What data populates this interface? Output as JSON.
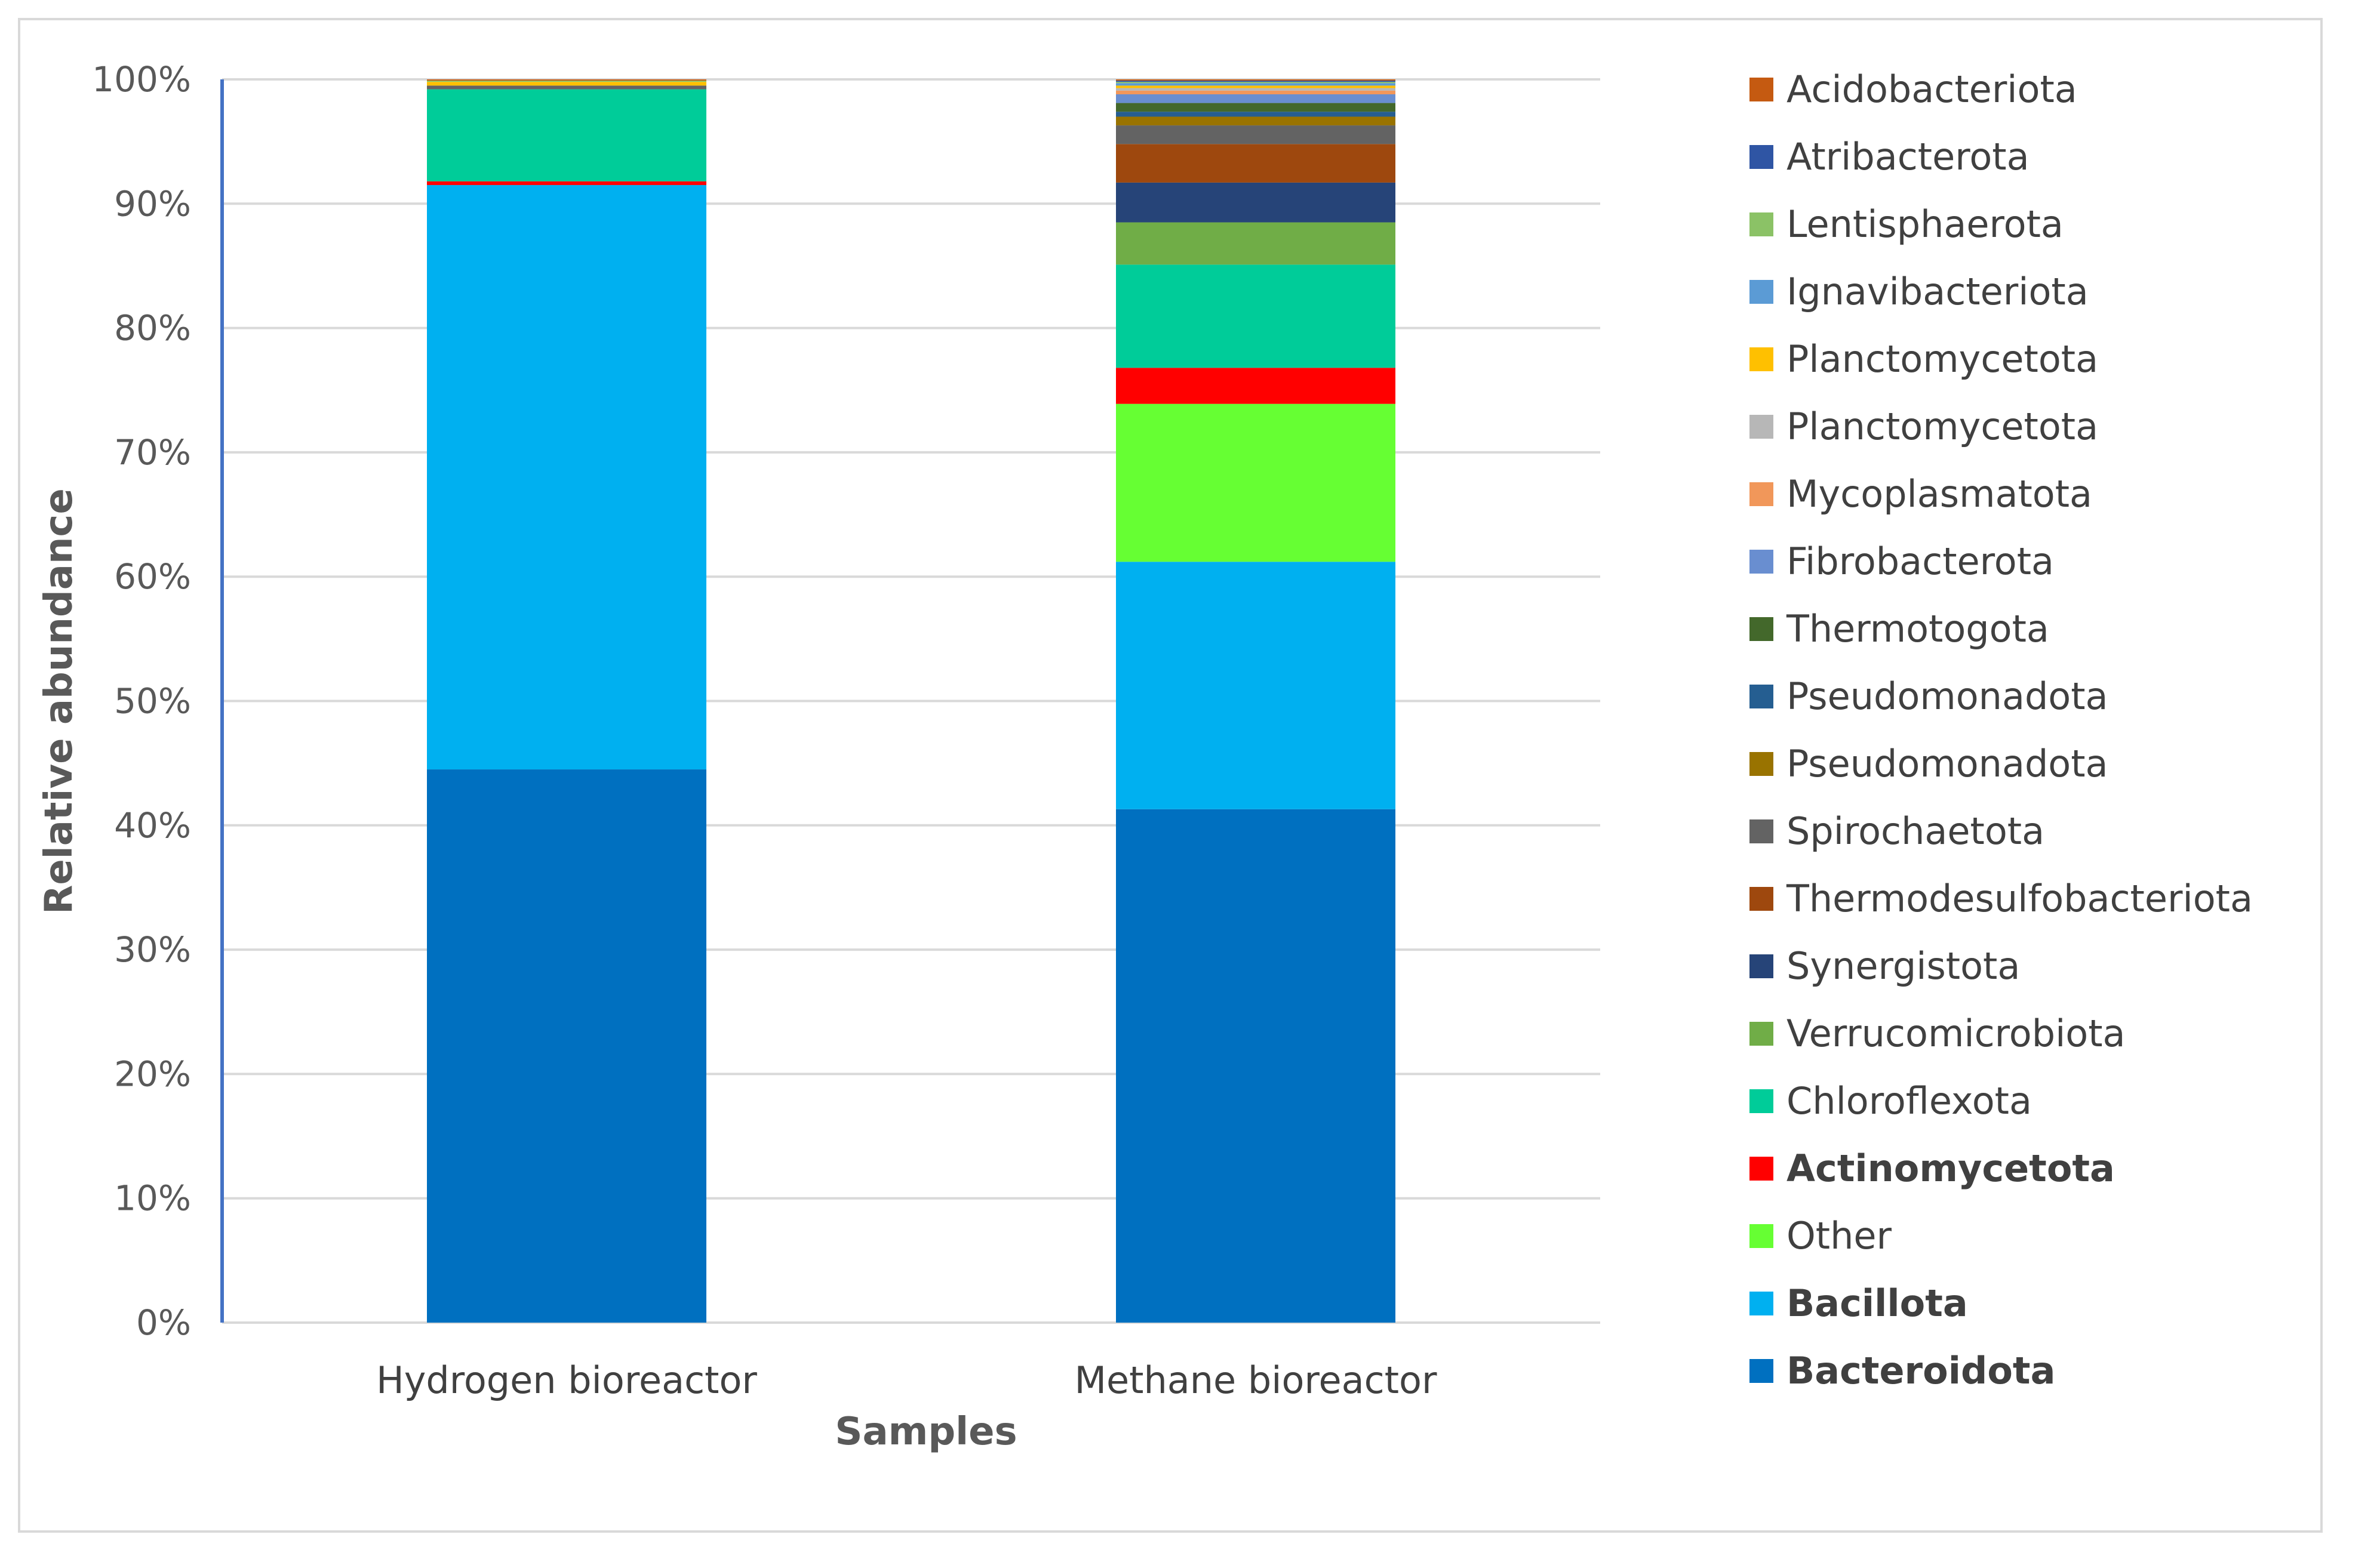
{
  "chart_data": {
    "type": "bar",
    "stacked": true,
    "percent": true,
    "categories": [
      "Hydrogen bioreactor",
      "Methane bioreactor"
    ],
    "xlabel": "Samples",
    "ylabel": "Relative abundance",
    "ylim": [
      0,
      100
    ],
    "yticks": [
      "0%",
      "10%",
      "20%",
      "30%",
      "40%",
      "50%",
      "60%",
      "70%",
      "80%",
      "90%",
      "100%"
    ],
    "grid": true,
    "legend": "right",
    "series": [
      {
        "name": "Bacteroidota",
        "color": "#0070C0",
        "bold": true,
        "values": [
          44.5,
          41.3
        ]
      },
      {
        "name": "Bacillota",
        "color": "#00B0F0",
        "bold": true,
        "values": [
          47.0,
          19.9
        ]
      },
      {
        "name": "Other",
        "color": "#66FF33",
        "bold": false,
        "values": [
          0.0,
          12.7
        ]
      },
      {
        "name": "Actinomycetota",
        "color": "#FF0000",
        "bold": true,
        "values": [
          0.3,
          2.9
        ]
      },
      {
        "name": "Chloroflexota",
        "color": "#00CC99",
        "bold": false,
        "values": [
          7.4,
          8.3
        ]
      },
      {
        "name": "Verrucomicrobiota",
        "color": "#70AD47",
        "bold": false,
        "values": [
          0.0,
          3.4
        ]
      },
      {
        "name": "Synergistota",
        "color": "#264478",
        "bold": false,
        "values": [
          0.0,
          3.2
        ]
      },
      {
        "name": "Thermodesulfobacteriota",
        "color": "#9E480E",
        "bold": false,
        "values": [
          0.0,
          3.1
        ]
      },
      {
        "name": "Spirochaetota",
        "color": "#636363",
        "bold": false,
        "values": [
          0.3,
          1.5
        ]
      },
      {
        "name": "Pseudomonadota",
        "color": "#997300",
        "bold": false,
        "values": [
          0.0,
          0.7
        ]
      },
      {
        "name": "Pseudomonadota",
        "color": "#255E91",
        "bold": false,
        "values": [
          0.0,
          0.4
        ]
      },
      {
        "name": "Thermotogota",
        "color": "#43682B",
        "bold": false,
        "values": [
          0.0,
          0.7
        ]
      },
      {
        "name": "Fibrobacterota",
        "color": "#698ED0",
        "bold": false,
        "values": [
          0.0,
          0.7
        ]
      },
      {
        "name": "Mycoplasmatota",
        "color": "#F1975A",
        "bold": false,
        "values": [
          0.0,
          0.3
        ]
      },
      {
        "name": "Planctomycetota",
        "color": "#B7B7B7",
        "bold": false,
        "values": [
          0.0,
          0.2
        ]
      },
      {
        "name": "Planctomycetota",
        "color": "#FFC000",
        "bold": false,
        "values": [
          0.3,
          0.2
        ]
      },
      {
        "name": "Ignavibacteriota",
        "color": "#5B9BD5",
        "bold": false,
        "values": [
          0.0,
          0.2
        ]
      },
      {
        "name": "Lentisphaerota",
        "color": "#8BC266",
        "bold": false,
        "values": [
          0.1,
          0.1
        ]
      },
      {
        "name": "Atribacterota",
        "color": "#2F55A4",
        "bold": false,
        "values": [
          0.0,
          0.1
        ]
      },
      {
        "name": "Acidobacteriota",
        "color": "#C55A11",
        "bold": false,
        "values": [
          0.1,
          0.1
        ]
      }
    ],
    "legend_order": [
      "Acidobacteriota",
      "Atribacterota",
      "Lentisphaerota",
      "Ignavibacteriota",
      "Planctomycetota",
      "Planctomycetota",
      "Mycoplasmatota",
      "Fibrobacterota",
      "Thermotogota",
      "Pseudomonadota",
      "Pseudomonadota",
      "Spirochaetota",
      "Thermodesulfobacteriota",
      "Synergistota",
      "Verrucomicrobiota",
      "Chloroflexota",
      "Actinomycetota",
      "Other",
      "Bacillota",
      "Bacteroidota"
    ],
    "colors": {
      "gridline": "#D9D9D9",
      "axis_line": "#4472C4",
      "text": "#404040"
    }
  }
}
